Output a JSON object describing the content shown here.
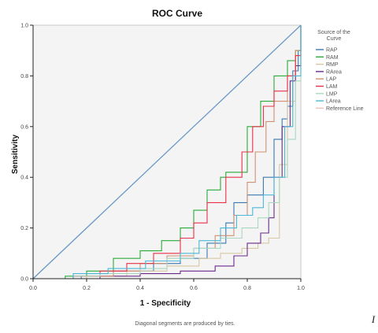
{
  "chart_data": {
    "type": "line",
    "title": "ROC Curve",
    "xlabel": "1 - Specificity",
    "ylabel": "Sensitivity",
    "xlim": [
      0,
      1
    ],
    "ylim": [
      0,
      1
    ],
    "x_ticks": [
      "0.0",
      "0.2",
      "0.4",
      "0.6",
      "0.8",
      "1.0"
    ],
    "y_ticks": [
      "0.0",
      "0.2",
      "0.4",
      "0.6",
      "0.8",
      "1.0"
    ],
    "legend_title": [
      "Source of the",
      "Curve"
    ],
    "legend_position": "right",
    "footnote": "Diagonal segments are produced by ties.",
    "corner_text": "I",
    "grid": false,
    "series": [
      {
        "name": "RAP",
        "color": "#3a78b0",
        "points": [
          [
            0,
            0
          ],
          [
            0.18,
            0.01
          ],
          [
            0.3,
            0.03
          ],
          [
            0.45,
            0.06
          ],
          [
            0.55,
            0.08
          ],
          [
            0.65,
            0.14
          ],
          [
            0.72,
            0.22
          ],
          [
            0.75,
            0.3
          ],
          [
            0.8,
            0.33
          ],
          [
            0.86,
            0.4
          ],
          [
            0.9,
            0.55
          ],
          [
            0.93,
            0.63
          ],
          [
            0.95,
            0.68
          ],
          [
            0.97,
            0.82
          ],
          [
            0.99,
            0.9
          ],
          [
            1,
            1
          ]
        ]
      },
      {
        "name": "RAM",
        "color": "#2aaa3a",
        "points": [
          [
            0,
            0
          ],
          [
            0.12,
            0.01
          ],
          [
            0.2,
            0.03
          ],
          [
            0.3,
            0.08
          ],
          [
            0.4,
            0.11
          ],
          [
            0.48,
            0.15
          ],
          [
            0.55,
            0.2
          ],
          [
            0.6,
            0.27
          ],
          [
            0.65,
            0.35
          ],
          [
            0.7,
            0.4
          ],
          [
            0.72,
            0.42
          ],
          [
            0.8,
            0.6
          ],
          [
            0.85,
            0.7
          ],
          [
            0.9,
            0.8
          ],
          [
            0.95,
            0.86
          ],
          [
            0.98,
            0.9
          ],
          [
            1,
            1
          ]
        ]
      },
      {
        "name": "RMP",
        "color": "#d8c8a0",
        "points": [
          [
            0,
            0
          ],
          [
            0.2,
            0.01
          ],
          [
            0.35,
            0.03
          ],
          [
            0.5,
            0.05
          ],
          [
            0.62,
            0.08
          ],
          [
            0.7,
            0.1
          ],
          [
            0.78,
            0.12
          ],
          [
            0.84,
            0.14
          ],
          [
            0.88,
            0.16
          ],
          [
            0.92,
            0.45
          ],
          [
            0.95,
            0.7
          ],
          [
            0.98,
            0.88
          ],
          [
            1,
            1
          ]
        ]
      },
      {
        "name": "RArea",
        "color": "#6a2a8a",
        "points": [
          [
            0,
            0
          ],
          [
            0.25,
            0.01
          ],
          [
            0.4,
            0.02
          ],
          [
            0.55,
            0.03
          ],
          [
            0.68,
            0.05
          ],
          [
            0.75,
            0.09
          ],
          [
            0.8,
            0.14
          ],
          [
            0.85,
            0.18
          ],
          [
            0.88,
            0.24
          ],
          [
            0.9,
            0.4
          ],
          [
            0.93,
            0.6
          ],
          [
            0.96,
            0.78
          ],
          [
            0.98,
            0.84
          ],
          [
            1,
            1
          ]
        ]
      },
      {
        "name": "LAP",
        "color": "#d09070",
        "points": [
          [
            0,
            0
          ],
          [
            0.15,
            0.01
          ],
          [
            0.3,
            0.03
          ],
          [
            0.4,
            0.06
          ],
          [
            0.5,
            0.09
          ],
          [
            0.6,
            0.12
          ],
          [
            0.68,
            0.17
          ],
          [
            0.75,
            0.25
          ],
          [
            0.8,
            0.38
          ],
          [
            0.83,
            0.5
          ],
          [
            0.87,
            0.62
          ],
          [
            0.9,
            0.7
          ],
          [
            0.95,
            0.8
          ],
          [
            0.98,
            0.9
          ],
          [
            1,
            1
          ]
        ]
      },
      {
        "name": "LAM",
        "color": "#e83048",
        "points": [
          [
            0,
            0
          ],
          [
            0.15,
            0.01
          ],
          [
            0.25,
            0.03
          ],
          [
            0.35,
            0.06
          ],
          [
            0.45,
            0.1
          ],
          [
            0.55,
            0.16
          ],
          [
            0.6,
            0.22
          ],
          [
            0.65,
            0.3
          ],
          [
            0.72,
            0.4
          ],
          [
            0.78,
            0.5
          ],
          [
            0.82,
            0.6
          ],
          [
            0.86,
            0.68
          ],
          [
            0.9,
            0.74
          ],
          [
            0.95,
            0.8
          ],
          [
            0.98,
            0.88
          ],
          [
            1,
            1
          ]
        ]
      },
      {
        "name": "LMP",
        "color": "#a8d8c0",
        "points": [
          [
            0,
            0
          ],
          [
            0.15,
            0.01
          ],
          [
            0.25,
            0.02
          ],
          [
            0.4,
            0.04
          ],
          [
            0.5,
            0.08
          ],
          [
            0.6,
            0.12
          ],
          [
            0.7,
            0.16
          ],
          [
            0.78,
            0.2
          ],
          [
            0.84,
            0.24
          ],
          [
            0.88,
            0.3
          ],
          [
            0.92,
            0.4
          ],
          [
            0.95,
            0.55
          ],
          [
            0.98,
            0.78
          ],
          [
            1,
            1
          ]
        ]
      },
      {
        "name": "LArea",
        "color": "#4ab8d8",
        "points": [
          [
            0,
            0
          ],
          [
            0.15,
            0.02
          ],
          [
            0.28,
            0.04
          ],
          [
            0.42,
            0.07
          ],
          [
            0.55,
            0.1
          ],
          [
            0.62,
            0.15
          ],
          [
            0.7,
            0.2
          ],
          [
            0.76,
            0.25
          ],
          [
            0.82,
            0.28
          ],
          [
            0.86,
            0.33
          ],
          [
            0.9,
            0.4
          ],
          [
            0.94,
            0.6
          ],
          [
            0.97,
            0.8
          ],
          [
            1,
            1
          ]
        ]
      },
      {
        "name": "Reference Line",
        "color": "#f0c0b8",
        "points": [
          [
            0,
            0
          ],
          [
            1,
            1
          ]
        ]
      }
    ]
  }
}
